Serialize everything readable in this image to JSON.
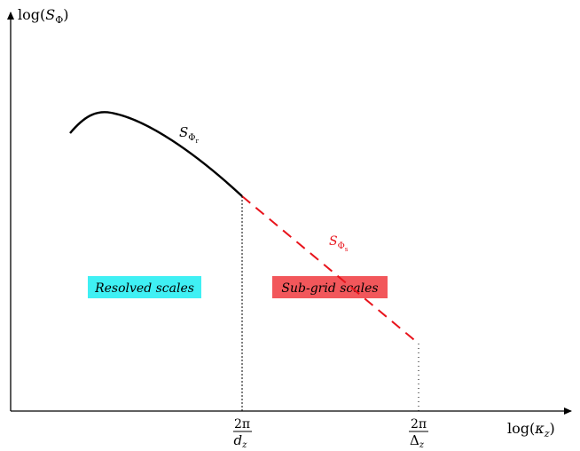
{
  "axes": {
    "y_label": {
      "prefix": "log(",
      "sym": "S",
      "sub": "Φ",
      "suffix": ")"
    },
    "x_label": {
      "prefix": "log(",
      "sym": "κ",
      "sub": "z",
      "suffix": ")"
    }
  },
  "ticks": {
    "dz": {
      "num": "2π",
      "den_sym": "d",
      "den_sub": "z"
    },
    "delta_z": {
      "num": "2π",
      "den_sym": "Δ",
      "den_sub": "z"
    }
  },
  "curves": {
    "resolved": {
      "sym": "S",
      "sub": "Φ",
      "subsub": "r",
      "color": "#000000"
    },
    "subgrid": {
      "sym": "S",
      "sub": "Φ",
      "subsub": "s",
      "color": "#e8141c"
    }
  },
  "regions": {
    "resolved": {
      "label": "Resolved scales",
      "color": "#3ff0f4"
    },
    "subgrid": {
      "label": "Sub-grid scales",
      "color": "#f2575b"
    }
  }
}
